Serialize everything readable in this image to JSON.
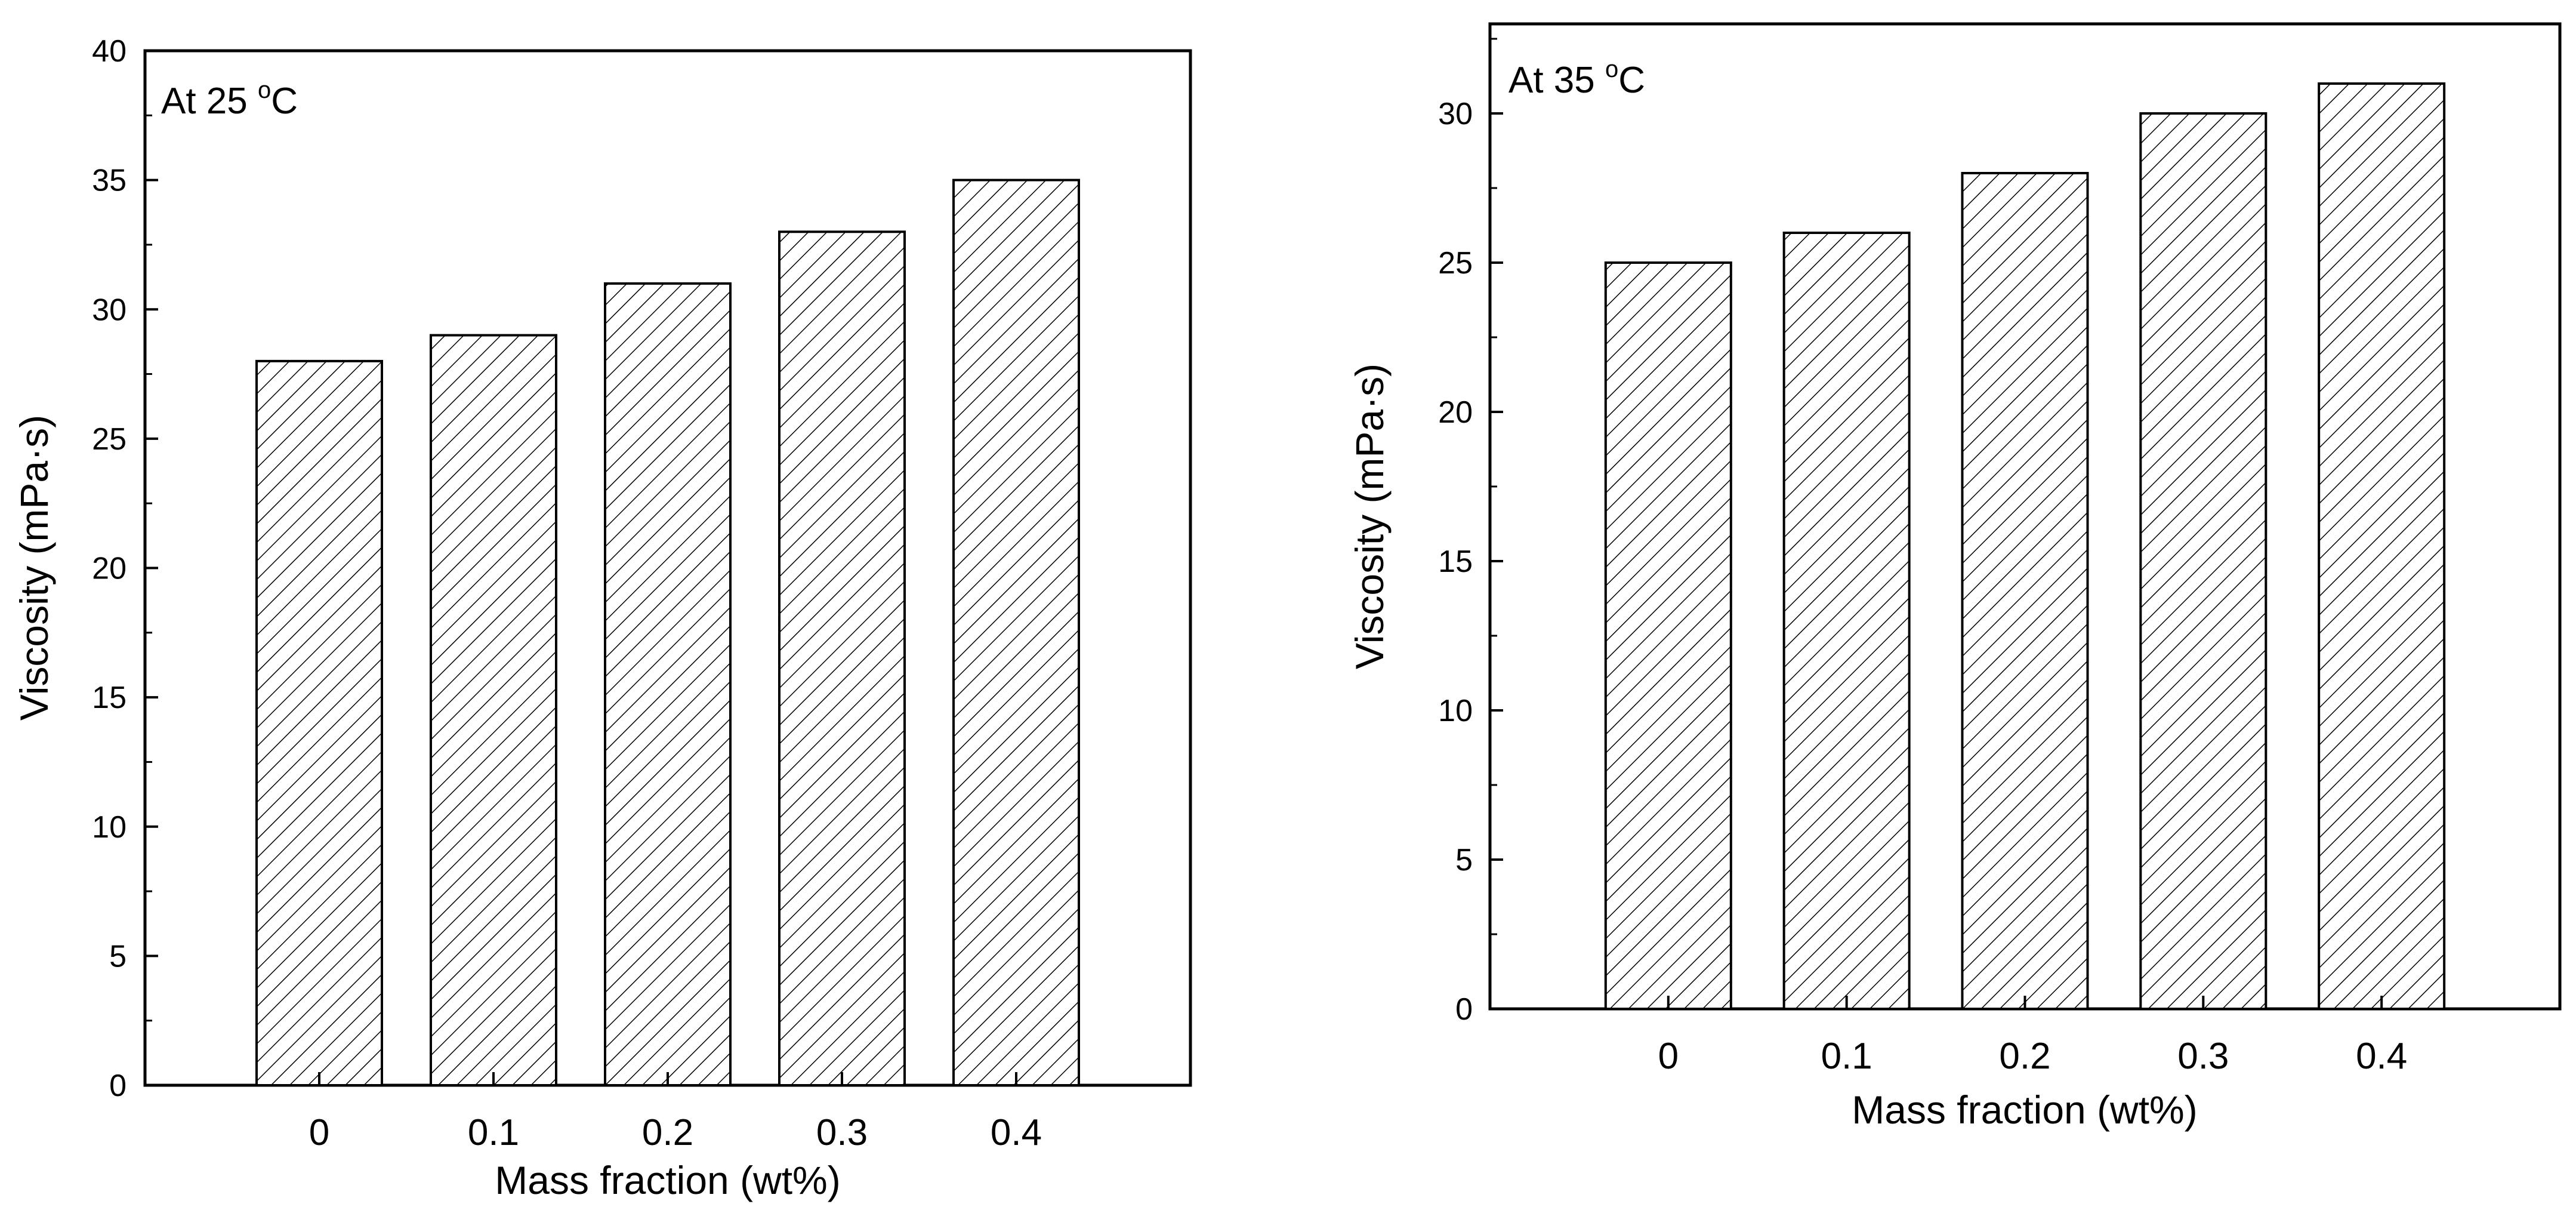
{
  "chart_data": [
    {
      "type": "bar",
      "annotation": {
        "prefix": "At 25 ",
        "superscript": "o",
        "suffix": "C"
      },
      "categories": [
        "0",
        "0.1",
        "0.2",
        "0.3",
        "0.4"
      ],
      "values": [
        28,
        29,
        31,
        33,
        35
      ],
      "xlabel": "Mass fraction (wt%)",
      "ylabel": "Viscosity (mPa·s)",
      "ylim": [
        0,
        40
      ],
      "yticks": [
        0,
        5,
        10,
        15,
        20,
        25,
        30,
        35,
        40
      ],
      "grid": false,
      "bar_fill": "diagonal-hatch"
    },
    {
      "type": "bar",
      "annotation": {
        "prefix": "At 35 ",
        "superscript": "o",
        "suffix": "C"
      },
      "categories": [
        "0",
        "0.1",
        "0.2",
        "0.3",
        "0.4"
      ],
      "values": [
        25,
        26,
        28,
        30,
        31
      ],
      "xlabel": "Mass fraction (wt%)",
      "ylabel": "Viscosity (mPa·s)",
      "ylim": [
        0,
        33
      ],
      "yticks": [
        0,
        5,
        10,
        15,
        20,
        25,
        30
      ],
      "grid": false,
      "bar_fill": "diagonal-hatch"
    }
  ],
  "colors": {
    "axis": "#000000",
    "hatch": "#000000",
    "background": "#ffffff"
  }
}
